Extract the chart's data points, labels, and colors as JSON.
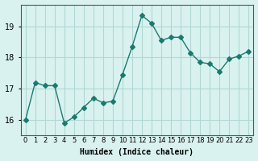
{
  "x": [
    0,
    1,
    2,
    3,
    4,
    5,
    6,
    7,
    8,
    9,
    10,
    11,
    12,
    13,
    14,
    15,
    16,
    17,
    18,
    19,
    20,
    21,
    22,
    23
  ],
  "y": [
    16.0,
    17.2,
    17.1,
    17.1,
    15.9,
    16.1,
    16.4,
    16.7,
    16.55,
    16.6,
    17.45,
    18.35,
    19.35,
    19.1,
    18.55,
    18.65,
    18.65,
    18.15,
    17.85,
    17.8,
    17.55,
    17.95,
    18.05,
    18.2
  ],
  "line_color": "#1a7a6e",
  "marker": "D",
  "marker_size": 3,
  "bg_color": "#d9f2f0",
  "grid_color": "#b0d8d4",
  "xlabel": "Humidex (Indice chaleur)",
  "ylabel": "",
  "title": "",
  "ylim": [
    15.5,
    19.7
  ],
  "xlim": [
    -0.5,
    23.5
  ],
  "yticks": [
    16,
    17,
    18,
    19
  ],
  "xtick_labels": [
    "0",
    "1",
    "2",
    "3",
    "4",
    "5",
    "6",
    "7",
    "8",
    "9",
    "10",
    "11",
    "12",
    "13",
    "14",
    "15",
    "16",
    "17",
    "18",
    "19",
    "20",
    "21",
    "22",
    "23"
  ]
}
